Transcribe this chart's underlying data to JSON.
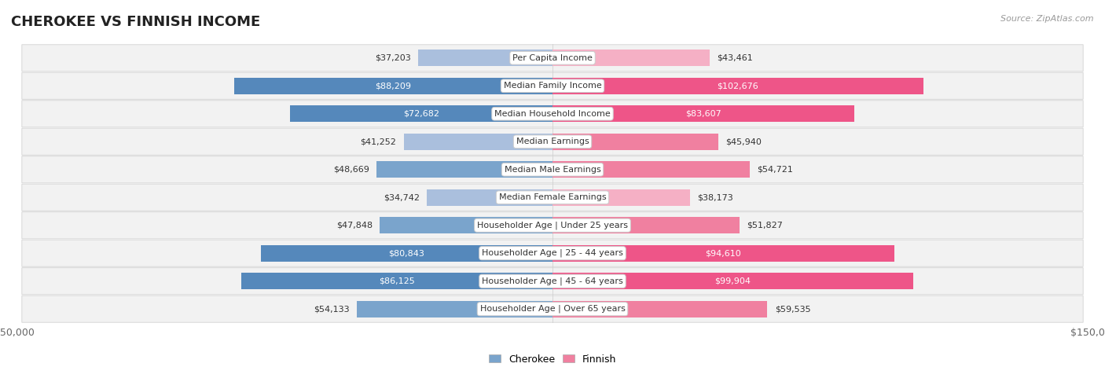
{
  "title": "CHEROKEE VS FINNISH INCOME",
  "source": "Source: ZipAtlas.com",
  "categories": [
    "Per Capita Income",
    "Median Family Income",
    "Median Household Income",
    "Median Earnings",
    "Median Male Earnings",
    "Median Female Earnings",
    "Householder Age | Under 25 years",
    "Householder Age | 25 - 44 years",
    "Householder Age | 45 - 64 years",
    "Householder Age | Over 65 years"
  ],
  "cherokee_values": [
    37203,
    88209,
    72682,
    41252,
    48669,
    34742,
    47848,
    80843,
    86125,
    54133
  ],
  "finnish_values": [
    43461,
    102676,
    83607,
    45940,
    54721,
    38173,
    51827,
    94610,
    99904,
    59535
  ],
  "cherokee_color_light": "#aabfdd",
  "cherokee_color_mid": "#7aa4cc",
  "cherokee_color_dark": "#5588bb",
  "finnish_color_light": "#f5b0c5",
  "finnish_color_mid": "#f080a0",
  "finnish_color_dark": "#ee5588",
  "max_value": 150000,
  "bar_height": 0.58,
  "background_color": "#ffffff",
  "row_bg_even": "#f0f0f0",
  "row_bg_odd": "#e8e8e8",
  "title_fontsize": 13,
  "label_fontsize": 8,
  "value_fontsize": 8,
  "legend_fontsize": 9,
  "title_color": "#222222",
  "source_color": "#999999",
  "dark_value_threshold": 65000
}
